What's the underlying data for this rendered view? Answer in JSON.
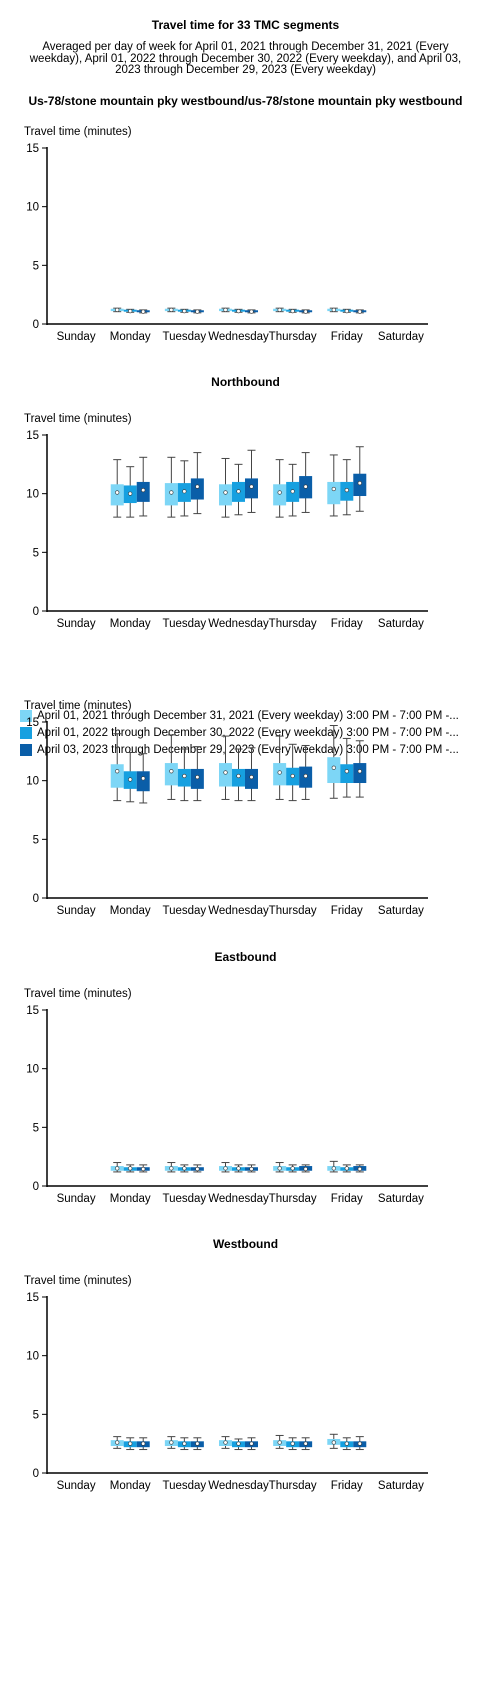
{
  "page": {
    "title": "Travel time for 33 TMC segments",
    "subtitle": "Averaged per day of week for April 01, 2021 through December 31, 2021 (Every weekday), April 01, 2022 through December 30, 2022 (Every weekday), and April 03, 2023 through December 29, 2023 (Every weekday)"
  },
  "legend": [
    {
      "label": "April 01, 2021 through December 31, 2021 (Every weekday) 3:00 PM - 7:00 PM -...",
      "color": "#7dd6f6"
    },
    {
      "label": "April 01, 2022 through December 30, 2022 (Every weekday) 3:00 PM - 7:00 PM -...",
      "color": "#16a0e0"
    },
    {
      "label": "April 03, 2023 through December 29, 2023 (Every weekday) 3:00 PM - 7:00 PM -...",
      "color": "#0a5ea8"
    }
  ],
  "chart_data": [
    {
      "type": "box",
      "title": "Us-78/stone mountain pky westbound/us-78/stone mountain pky westbound",
      "ylabel": "Travel time (minutes)",
      "ylim": [
        0,
        15
      ],
      "yticks": [
        0,
        5,
        10,
        15
      ],
      "categories": [
        "Sunday",
        "Monday",
        "Tuesday",
        "Wednesday",
        "Thursday",
        "Friday",
        "Saturday"
      ],
      "series": [
        {
          "values": [
            null,
            {
              "min": 1.05,
              "q1": 1.1,
              "median": 1.2,
              "mean": 1.2,
              "q3": 1.3,
              "max": 1.35
            },
            {
              "min": 1.05,
              "q1": 1.1,
              "median": 1.2,
              "mean": 1.2,
              "q3": 1.3,
              "max": 1.35
            },
            {
              "min": 1.05,
              "q1": 1.1,
              "median": 1.2,
              "mean": 1.2,
              "q3": 1.3,
              "max": 1.35
            },
            {
              "min": 1.05,
              "q1": 1.1,
              "median": 1.2,
              "mean": 1.2,
              "q3": 1.3,
              "max": 1.35
            },
            {
              "min": 1.05,
              "q1": 1.1,
              "median": 1.2,
              "mean": 1.2,
              "q3": 1.3,
              "max": 1.35
            },
            null
          ]
        },
        {
          "values": [
            null,
            {
              "min": 1.0,
              "q1": 1.05,
              "median": 1.1,
              "mean": 1.1,
              "q3": 1.2,
              "max": 1.25
            },
            {
              "min": 1.0,
              "q1": 1.05,
              "median": 1.1,
              "mean": 1.1,
              "q3": 1.2,
              "max": 1.25
            },
            {
              "min": 1.0,
              "q1": 1.05,
              "median": 1.1,
              "mean": 1.1,
              "q3": 1.2,
              "max": 1.25
            },
            {
              "min": 1.0,
              "q1": 1.05,
              "median": 1.1,
              "mean": 1.1,
              "q3": 1.2,
              "max": 1.25
            },
            {
              "min": 1.0,
              "q1": 1.05,
              "median": 1.1,
              "mean": 1.1,
              "q3": 1.2,
              "max": 1.25
            },
            null
          ]
        },
        {
          "values": [
            null,
            {
              "min": 0.95,
              "q1": 1.0,
              "median": 1.05,
              "mean": 1.05,
              "q3": 1.15,
              "max": 1.2
            },
            {
              "min": 0.95,
              "q1": 1.0,
              "median": 1.05,
              "mean": 1.05,
              "q3": 1.15,
              "max": 1.2
            },
            {
              "min": 0.95,
              "q1": 1.0,
              "median": 1.05,
              "mean": 1.05,
              "q3": 1.15,
              "max": 1.2
            },
            {
              "min": 0.95,
              "q1": 1.0,
              "median": 1.05,
              "mean": 1.05,
              "q3": 1.15,
              "max": 1.2
            },
            {
              "min": 0.95,
              "q1": 1.0,
              "median": 1.05,
              "mean": 1.05,
              "q3": 1.15,
              "max": 1.2
            },
            null
          ]
        }
      ]
    },
    {
      "type": "box",
      "title": "Northbound",
      "ylabel": "Travel time (minutes)",
      "ylim": [
        0,
        15
      ],
      "yticks": [
        0,
        5,
        10,
        15
      ],
      "categories": [
        "Sunday",
        "Monday",
        "Tuesday",
        "Wednesday",
        "Thursday",
        "Friday",
        "Saturday"
      ],
      "series": [
        {
          "values": [
            null,
            {
              "min": 8.0,
              "q1": 9.0,
              "median": 10.1,
              "mean": 10.1,
              "q3": 10.8,
              "max": 12.9
            },
            {
              "min": 8.0,
              "q1": 9.0,
              "median": 10.1,
              "mean": 10.1,
              "q3": 10.9,
              "max": 13.1
            },
            {
              "min": 8.0,
              "q1": 9.0,
              "median": 10.1,
              "mean": 10.1,
              "q3": 10.8,
              "max": 13.0
            },
            {
              "min": 8.0,
              "q1": 9.0,
              "median": 10.1,
              "mean": 10.1,
              "q3": 10.8,
              "max": 12.9
            },
            {
              "min": 8.1,
              "q1": 9.1,
              "median": 10.4,
              "mean": 10.4,
              "q3": 11.0,
              "max": 13.3
            },
            null
          ]
        },
        {
          "values": [
            null,
            {
              "min": 8.0,
              "q1": 9.2,
              "median": 10.0,
              "mean": 10.0,
              "q3": 10.7,
              "max": 12.3
            },
            {
              "min": 8.1,
              "q1": 9.3,
              "median": 10.2,
              "mean": 10.2,
              "q3": 10.9,
              "max": 12.8
            },
            {
              "min": 8.2,
              "q1": 9.3,
              "median": 10.2,
              "mean": 10.2,
              "q3": 11.0,
              "max": 12.5
            },
            {
              "min": 8.1,
              "q1": 9.3,
              "median": 10.2,
              "mean": 10.2,
              "q3": 11.0,
              "max": 12.5
            },
            {
              "min": 8.2,
              "q1": 9.4,
              "median": 10.3,
              "mean": 10.3,
              "q3": 11.0,
              "max": 12.9
            },
            null
          ]
        },
        {
          "values": [
            null,
            {
              "min": 8.1,
              "q1": 9.3,
              "median": 10.3,
              "mean": 10.3,
              "q3": 11.0,
              "max": 13.1
            },
            {
              "min": 8.3,
              "q1": 9.5,
              "median": 10.6,
              "mean": 10.6,
              "q3": 11.3,
              "max": 13.5
            },
            {
              "min": 8.4,
              "q1": 9.6,
              "median": 10.6,
              "mean": 10.6,
              "q3": 11.3,
              "max": 13.7
            },
            {
              "min": 8.4,
              "q1": 9.6,
              "median": 10.6,
              "mean": 10.6,
              "q3": 11.5,
              "max": 13.5
            },
            {
              "min": 8.5,
              "q1": 9.8,
              "median": 10.9,
              "mean": 10.9,
              "q3": 11.7,
              "max": 14.0
            },
            null
          ]
        }
      ]
    },
    {
      "type": "box",
      "title": "",
      "ylabel": "Travel time (minutes)",
      "ylim": [
        0,
        15
      ],
      "yticks": [
        0,
        5,
        10,
        15
      ],
      "categories": [
        "Sunday",
        "Monday",
        "Tuesday",
        "Wednesday",
        "Thursday",
        "Friday",
        "Saturday"
      ],
      "series": [
        {
          "values": [
            null,
            {
              "min": 8.3,
              "q1": 9.4,
              "median": 10.8,
              "mean": 10.8,
              "q3": 11.4,
              "max": 14.0
            },
            {
              "min": 8.4,
              "q1": 9.6,
              "median": 10.8,
              "mean": 10.8,
              "q3": 11.5,
              "max": 13.9
            },
            {
              "min": 8.4,
              "q1": 9.5,
              "median": 10.7,
              "mean": 10.7,
              "q3": 11.5,
              "max": 13.8
            },
            {
              "min": 8.4,
              "q1": 9.6,
              "median": 10.7,
              "mean": 10.7,
              "q3": 11.5,
              "max": 13.8
            },
            {
              "min": 8.5,
              "q1": 9.8,
              "median": 11.1,
              "mean": 11.1,
              "q3": 12.0,
              "max": 14.7
            },
            null
          ]
        },
        {
          "values": [
            null,
            {
              "min": 8.2,
              "q1": 9.3,
              "median": 10.1,
              "mean": 10.1,
              "q3": 10.8,
              "max": 12.4
            },
            {
              "min": 8.3,
              "q1": 9.5,
              "median": 10.4,
              "mean": 10.4,
              "q3": 11.0,
              "max": 12.7
            },
            {
              "min": 8.3,
              "q1": 9.5,
              "median": 10.4,
              "mean": 10.4,
              "q3": 11.0,
              "max": 12.7
            },
            {
              "min": 8.3,
              "q1": 9.6,
              "median": 10.4,
              "mean": 10.4,
              "q3": 11.1,
              "max": 13.1
            },
            {
              "min": 8.6,
              "q1": 9.8,
              "median": 10.8,
              "mean": 10.8,
              "q3": 11.4,
              "max": 13.6
            },
            null
          ]
        },
        {
          "values": [
            null,
            {
              "min": 8.1,
              "q1": 9.1,
              "median": 10.2,
              "mean": 10.2,
              "q3": 10.8,
              "max": 12.3
            },
            {
              "min": 8.3,
              "q1": 9.3,
              "median": 10.3,
              "mean": 10.3,
              "q3": 11.0,
              "max": 12.9
            },
            {
              "min": 8.3,
              "q1": 9.3,
              "median": 10.3,
              "mean": 10.3,
              "q3": 11.0,
              "max": 12.8
            },
            {
              "min": 8.4,
              "q1": 9.4,
              "median": 10.4,
              "mean": 10.4,
              "q3": 11.2,
              "max": 13.0
            },
            {
              "min": 8.6,
              "q1": 9.8,
              "median": 10.8,
              "mean": 10.8,
              "q3": 11.5,
              "max": 13.4
            },
            null
          ]
        }
      ]
    },
    {
      "type": "box",
      "title": "Eastbound",
      "ylabel": "Travel time (minutes)",
      "ylim": [
        0,
        15
      ],
      "yticks": [
        0,
        5,
        10,
        15
      ],
      "categories": [
        "Sunday",
        "Monday",
        "Tuesday",
        "Wednesday",
        "Thursday",
        "Friday",
        "Saturday"
      ],
      "series": [
        {
          "values": [
            null,
            {
              "min": 1.2,
              "q1": 1.3,
              "median": 1.5,
              "mean": 1.5,
              "q3": 1.7,
              "max": 2.0
            },
            {
              "min": 1.2,
              "q1": 1.3,
              "median": 1.5,
              "mean": 1.5,
              "q3": 1.7,
              "max": 2.0
            },
            {
              "min": 1.2,
              "q1": 1.3,
              "median": 1.5,
              "mean": 1.5,
              "q3": 1.7,
              "max": 2.0
            },
            {
              "min": 1.2,
              "q1": 1.3,
              "median": 1.5,
              "mean": 1.5,
              "q3": 1.7,
              "max": 2.0
            },
            {
              "min": 1.2,
              "q1": 1.3,
              "median": 1.5,
              "mean": 1.5,
              "q3": 1.7,
              "max": 2.1
            },
            null
          ]
        },
        {
          "values": [
            null,
            {
              "min": 1.2,
              "q1": 1.3,
              "median": 1.5,
              "mean": 1.5,
              "q3": 1.6,
              "max": 1.8
            },
            {
              "min": 1.2,
              "q1": 1.3,
              "median": 1.5,
              "mean": 1.5,
              "q3": 1.6,
              "max": 1.8
            },
            {
              "min": 1.2,
              "q1": 1.3,
              "median": 1.5,
              "mean": 1.5,
              "q3": 1.6,
              "max": 1.8
            },
            {
              "min": 1.2,
              "q1": 1.3,
              "median": 1.5,
              "mean": 1.5,
              "q3": 1.6,
              "max": 1.8
            },
            {
              "min": 1.2,
              "q1": 1.3,
              "median": 1.5,
              "mean": 1.5,
              "q3": 1.6,
              "max": 1.8
            },
            null
          ]
        },
        {
          "values": [
            null,
            {
              "min": 1.2,
              "q1": 1.3,
              "median": 1.45,
              "mean": 1.45,
              "q3": 1.6,
              "max": 1.8
            },
            {
              "min": 1.2,
              "q1": 1.3,
              "median": 1.45,
              "mean": 1.45,
              "q3": 1.6,
              "max": 1.8
            },
            {
              "min": 1.2,
              "q1": 1.3,
              "median": 1.45,
              "mean": 1.45,
              "q3": 1.6,
              "max": 1.8
            },
            {
              "min": 1.2,
              "q1": 1.3,
              "median": 1.45,
              "mean": 1.45,
              "q3": 1.7,
              "max": 1.8
            },
            {
              "min": 1.2,
              "q1": 1.3,
              "median": 1.45,
              "mean": 1.45,
              "q3": 1.7,
              "max": 1.8
            },
            null
          ]
        }
      ]
    },
    {
      "type": "box",
      "title": "Westbound",
      "ylabel": "Travel time (minutes)",
      "ylim": [
        0,
        15
      ],
      "yticks": [
        0,
        5,
        10,
        15
      ],
      "categories": [
        "Sunday",
        "Monday",
        "Tuesday",
        "Wednesday",
        "Thursday",
        "Friday",
        "Saturday"
      ],
      "series": [
        {
          "values": [
            null,
            {
              "min": 2.1,
              "q1": 2.3,
              "median": 2.6,
              "mean": 2.6,
              "q3": 2.8,
              "max": 3.1
            },
            {
              "min": 2.1,
              "q1": 2.3,
              "median": 2.6,
              "mean": 2.6,
              "q3": 2.8,
              "max": 3.1
            },
            {
              "min": 2.1,
              "q1": 2.3,
              "median": 2.6,
              "mean": 2.6,
              "q3": 2.8,
              "max": 3.1
            },
            {
              "min": 2.1,
              "q1": 2.3,
              "median": 2.6,
              "mean": 2.6,
              "q3": 2.8,
              "max": 3.2
            },
            {
              "min": 2.1,
              "q1": 2.4,
              "median": 2.6,
              "mean": 2.6,
              "q3": 2.9,
              "max": 3.3
            },
            null
          ]
        },
        {
          "values": [
            null,
            {
              "min": 2.0,
              "q1": 2.2,
              "median": 2.5,
              "mean": 2.5,
              "q3": 2.7,
              "max": 3.0
            },
            {
              "min": 2.0,
              "q1": 2.2,
              "median": 2.5,
              "mean": 2.5,
              "q3": 2.7,
              "max": 3.0
            },
            {
              "min": 2.0,
              "q1": 2.2,
              "median": 2.5,
              "mean": 2.5,
              "q3": 2.7,
              "max": 2.9
            },
            {
              "min": 2.0,
              "q1": 2.2,
              "median": 2.5,
              "mean": 2.5,
              "q3": 2.7,
              "max": 3.0
            },
            {
              "min": 2.0,
              "q1": 2.2,
              "median": 2.5,
              "mean": 2.5,
              "q3": 2.7,
              "max": 3.0
            },
            null
          ]
        },
        {
          "values": [
            null,
            {
              "min": 2.0,
              "q1": 2.2,
              "median": 2.5,
              "mean": 2.5,
              "q3": 2.7,
              "max": 3.0
            },
            {
              "min": 2.0,
              "q1": 2.2,
              "median": 2.5,
              "mean": 2.5,
              "q3": 2.7,
              "max": 3.0
            },
            {
              "min": 2.0,
              "q1": 2.2,
              "median": 2.5,
              "mean": 2.5,
              "q3": 2.7,
              "max": 3.0
            },
            {
              "min": 2.0,
              "q1": 2.2,
              "median": 2.5,
              "mean": 2.5,
              "q3": 2.7,
              "max": 3.0
            },
            {
              "min": 2.0,
              "q1": 2.2,
              "median": 2.5,
              "mean": 2.5,
              "q3": 2.7,
              "max": 3.1
            },
            null
          ]
        }
      ]
    }
  ]
}
